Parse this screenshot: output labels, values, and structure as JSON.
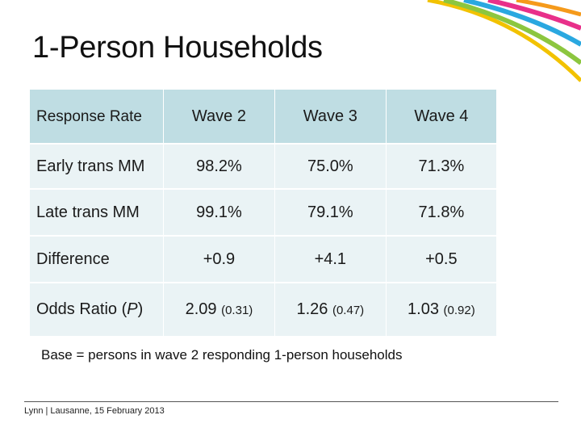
{
  "slide": {
    "title": "1-Person Households"
  },
  "table": {
    "header": {
      "label": "Response Rate",
      "columns": [
        "Wave 2",
        "Wave 3",
        "Wave 4"
      ]
    },
    "rows": [
      {
        "label": "Early trans MM",
        "values": [
          "98.2%",
          "75.0%",
          "71.3%"
        ]
      },
      {
        "label": "Late trans MM",
        "values": [
          "99.1%",
          "79.1%",
          "71.8%"
        ]
      },
      {
        "label": "Difference",
        "values": [
          "+0.9",
          "+4.1",
          "+0.5"
        ]
      },
      {
        "label_main": "Odds Ratio (",
        "label_italic": "P",
        "label_close": ")",
        "values": [
          "2.09",
          "1.26",
          "1.03"
        ],
        "pvalues": [
          "(0.31)",
          "(0.47)",
          "(0.92)"
        ]
      }
    ]
  },
  "note": "Base = persons in wave 2 responding 1-person households",
  "footer": "Lynn | Lausanne, 15 February 2013",
  "colors": {
    "header_bg": "#bfdde3",
    "cell_bg": "#eaf3f5",
    "arc_colors": [
      "#f2c200",
      "#e8308a",
      "#2aa8e0",
      "#8cc63f",
      "#f59a1b"
    ]
  }
}
